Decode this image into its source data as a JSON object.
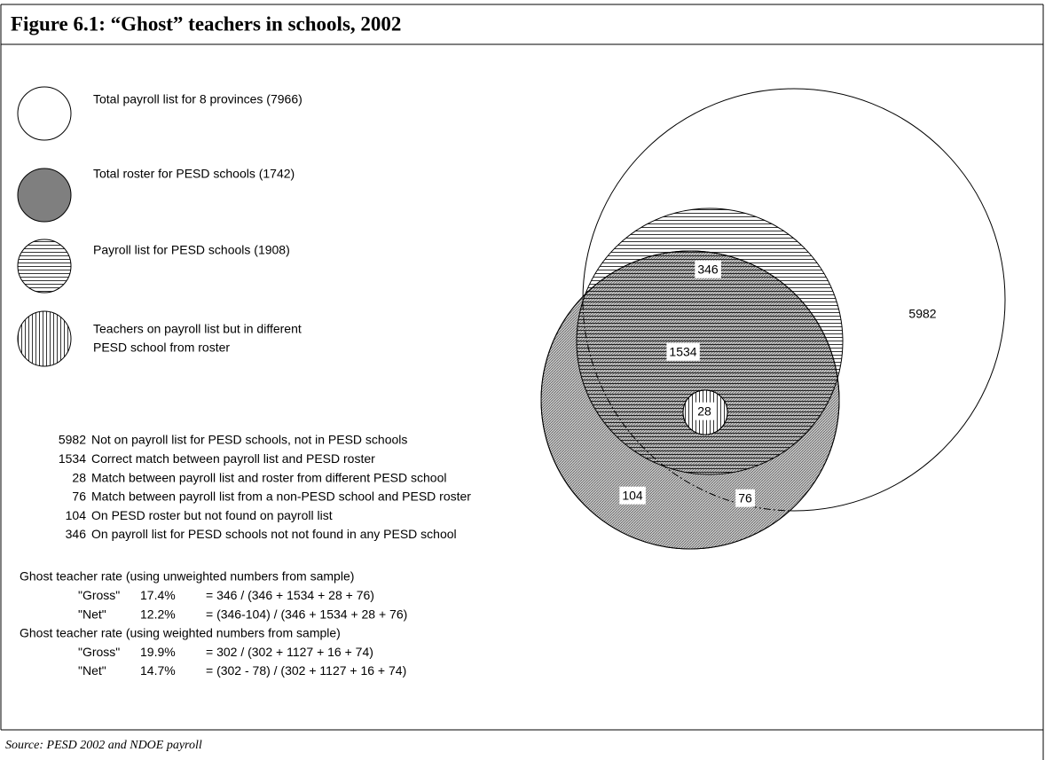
{
  "title": "Figure 6.1: “Ghost” teachers in schools, 2002",
  "legend": [
    {
      "lines": [
        "Total payroll list for 8 provinces (7966)"
      ]
    },
    {
      "lines": [
        "Total roster for PESD schools (1742)"
      ]
    },
    {
      "lines": [
        "Payroll list for PESD schools (1908)"
      ]
    },
    {
      "lines": [
        "Teachers on payroll list but in different",
        "PESD school from roster"
      ]
    }
  ],
  "diagram": {
    "labels": [
      346,
      5982,
      1534,
      28,
      104,
      76
    ]
  },
  "key": [
    {
      "number": 5982,
      "text": "Not on payroll list for PESD schools, not in PESD schools"
    },
    {
      "number": 1534,
      "text": "Correct match between payroll list and PESD roster"
    },
    {
      "number": 28,
      "text": "Match between payroll list and roster from different PESD school"
    },
    {
      "number": 76,
      "text": "Match between payroll list from a non-PESD school and PESD roster"
    },
    {
      "number": 104,
      "text": "On PESD roster but not found on payroll list"
    },
    {
      "number": 346,
      "text": "On payroll list for PESD schools not not found in any PESD school"
    }
  ],
  "rates": [
    {
      "heading": "Ghost teacher rate (using unweighted numbers from sample)",
      "rows": [
        {
          "name": "\"Gross\"",
          "rate": "17.4%",
          "formula": "= 346 / (346 + 1534 + 28 + 76)"
        },
        {
          "name": "\"Net\"",
          "rate": "12.2%",
          "formula": "= (346-104) / (346 + 1534 + 28 + 76)"
        }
      ]
    },
    {
      "heading": "Ghost teacher rate (using weighted numbers from sample)",
      "rows": [
        {
          "name": "\"Gross\"",
          "rate": "19.9%",
          "formula": "= 302 / (302 + 1127 + 16 + 74)"
        },
        {
          "name": "\"Net\"",
          "rate": "14.7%",
          "formula": "= (302 - 78) / (302 + 1127 + 16 + 74)"
        }
      ]
    }
  ],
  "source": "Source: PESD 2002 and NDOE payroll"
}
